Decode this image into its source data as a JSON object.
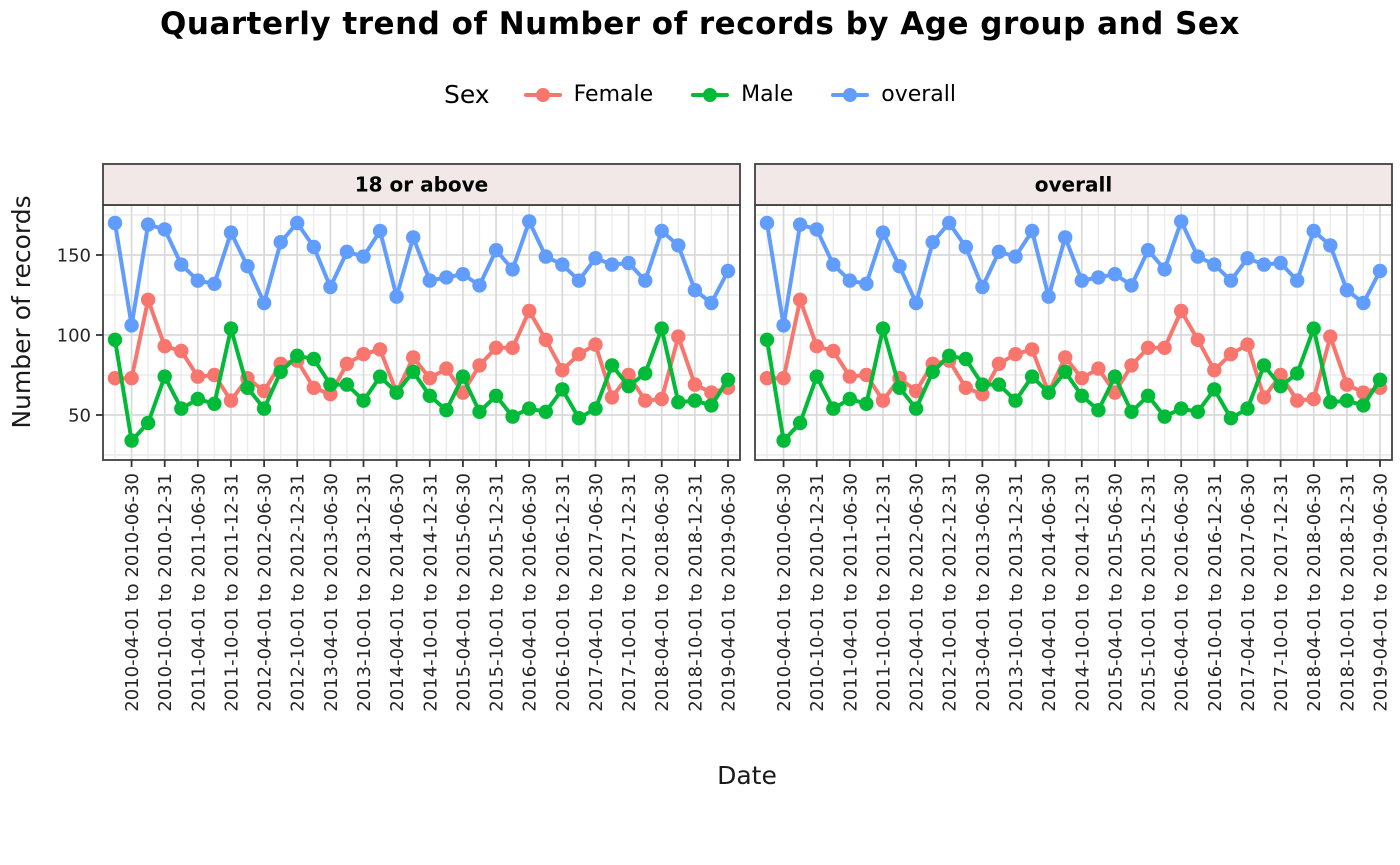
{
  "chart_data": {
    "type": "line",
    "title": "Quarterly trend of Number of records by Age group and Sex",
    "xlabel": "Date",
    "ylabel": "Number of records",
    "legend": {
      "title": "Sex",
      "position": "top",
      "entries": [
        {
          "label": "Female",
          "color": "#F8766D"
        },
        {
          "label": "Male",
          "color": "#00BA38"
        },
        {
          "label": "overall",
          "color": "#619CFF"
        }
      ]
    },
    "grid": "major and minor, light gray on white panel",
    "yticks": [
      50,
      100,
      150
    ],
    "yticks_minor": [
      25,
      75,
      125,
      175
    ],
    "ylim": [
      22,
      181
    ],
    "strip_bg_color": "#F1E8E7",
    "points_per_facet": 38,
    "x_tick_labels": [
      "2010-04-01 to 2010-06-30",
      "2010-10-01 to 2010-12-31",
      "2011-04-01 to 2011-06-30",
      "2011-10-01 to 2011-12-31",
      "2012-04-01 to 2012-06-30",
      "2012-10-01 to 2012-12-31",
      "2013-04-01 to 2013-06-30",
      "2013-10-01 to 2013-12-31",
      "2014-04-01 to 2014-06-30",
      "2014-10-01 to 2014-12-31",
      "2015-04-01 to 2015-06-30",
      "2015-10-01 to 2015-12-31",
      "2016-04-01 to 2016-06-30",
      "2016-10-01 to 2016-12-31",
      "2017-04-01 to 2017-06-30",
      "2017-10-01 to 2017-12-31",
      "2018-04-01 to 2018-06-30",
      "2018-10-01 to 2018-12-31",
      "2019-04-01 to 2019-06-30"
    ],
    "x_tick_note": "ticks sit on every 2nd data point; first point (2010 Q1) is unlabeled",
    "facets": [
      {
        "label": "18 or above",
        "series": [
          {
            "name": "Female",
            "color": "#F8766D",
            "values": [
              73,
              73,
              122,
              93,
              90,
              74,
              75,
              59,
              73,
              65,
              82,
              84,
              67,
              63,
              82,
              88,
              91,
              64,
              86,
              73,
              79,
              64,
              81,
              92,
              92,
              115,
              97,
              78,
              88,
              94,
              61,
              75,
              59,
              60,
              99,
              69,
              64,
              67
            ]
          },
          {
            "name": "Male",
            "color": "#00BA38",
            "values": [
              97,
              34,
              45,
              74,
              54,
              60,
              57,
              104,
              67,
              54,
              77,
              87,
              85,
              69,
              69,
              59,
              74,
              64,
              77,
              62,
              53,
              74,
              52,
              62,
              49,
              54,
              52,
              66,
              48,
              54,
              81,
              68,
              76,
              104,
              58,
              59,
              56,
              72
            ]
          },
          {
            "name": "overall",
            "color": "#619CFF",
            "values": [
              170,
              106,
              169,
              166,
              144,
              134,
              132,
              164,
              143,
              120,
              158,
              170,
              155,
              130,
              152,
              149,
              165,
              124,
              161,
              134,
              136,
              138,
              131,
              153,
              141,
              171,
              149,
              144,
              134,
              148,
              144,
              145,
              134,
              165,
              156,
              128,
              120,
              140
            ]
          }
        ]
      },
      {
        "label": "overall",
        "series": [
          {
            "name": "Female",
            "color": "#F8766D",
            "values": [
              73,
              73,
              122,
              93,
              90,
              74,
              75,
              59,
              73,
              65,
              82,
              84,
              67,
              63,
              82,
              88,
              91,
              64,
              86,
              73,
              79,
              64,
              81,
              92,
              92,
              115,
              97,
              78,
              88,
              94,
              61,
              75,
              59,
              60,
              99,
              69,
              64,
              67
            ]
          },
          {
            "name": "Male",
            "color": "#00BA38",
            "values": [
              97,
              34,
              45,
              74,
              54,
              60,
              57,
              104,
              67,
              54,
              77,
              87,
              85,
              69,
              69,
              59,
              74,
              64,
              77,
              62,
              53,
              74,
              52,
              62,
              49,
              54,
              52,
              66,
              48,
              54,
              81,
              68,
              76,
              104,
              58,
              59,
              56,
              72
            ]
          },
          {
            "name": "overall",
            "color": "#619CFF",
            "values": [
              170,
              106,
              169,
              166,
              144,
              134,
              132,
              164,
              143,
              120,
              158,
              170,
              155,
              130,
              152,
              149,
              165,
              124,
              161,
              134,
              136,
              138,
              131,
              153,
              141,
              171,
              149,
              144,
              134,
              148,
              144,
              145,
              134,
              165,
              156,
              128,
              120,
              140
            ]
          }
        ]
      }
    ]
  }
}
